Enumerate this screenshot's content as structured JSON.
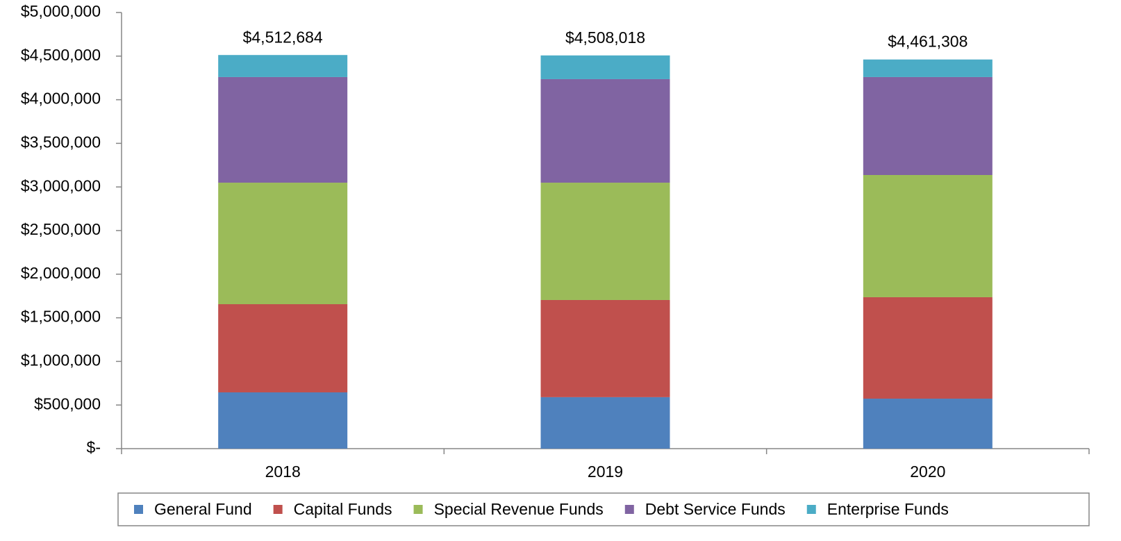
{
  "chart_data": {
    "type": "stacked_bar",
    "categories": [
      "2018",
      "2019",
      "2020"
    ],
    "series": [
      {
        "name": "General Fund",
        "color": "#4f81bd",
        "values": [
          645000,
          590000,
          573000
        ]
      },
      {
        "name": "Capital Funds",
        "color": "#c0504d",
        "values": [
          1011000,
          1114000,
          1163000
        ]
      },
      {
        "name": "Special Revenue Funds",
        "color": "#9bbb59",
        "values": [
          1393000,
          1345000,
          1401000
        ]
      },
      {
        "name": "Debt Service Funds",
        "color": "#8064a2",
        "values": [
          1211000,
          1187000,
          1123000
        ]
      },
      {
        "name": "Enterprise Funds",
        "color": "#4bacc6",
        "values": [
          252684,
          272018,
          201308
        ]
      }
    ],
    "totals": {
      "values": [
        4512684,
        4508018,
        4461308
      ],
      "value_labels": [
        "$4,512,684",
        "$4,508,018",
        "$4,461,308"
      ]
    },
    "ylim": [
      0,
      5000000
    ],
    "yticks": [
      {
        "value": 0,
        "label": "$-"
      },
      {
        "value": 500000,
        "label": "$500,000"
      },
      {
        "value": 1000000,
        "label": "$1,000,000"
      },
      {
        "value": 1500000,
        "label": "$1,500,000"
      },
      {
        "value": 2000000,
        "label": "$2,000,000"
      },
      {
        "value": 2500000,
        "label": "$2,500,000"
      },
      {
        "value": 3000000,
        "label": "$3,000,000"
      },
      {
        "value": 3500000,
        "label": "$3,500,000"
      },
      {
        "value": 4000000,
        "label": "$4,000,000"
      },
      {
        "value": 4500000,
        "label": "$4,500,000"
      },
      {
        "value": 5000000,
        "label": "$5,000,000"
      }
    ],
    "legend": "bottom"
  }
}
